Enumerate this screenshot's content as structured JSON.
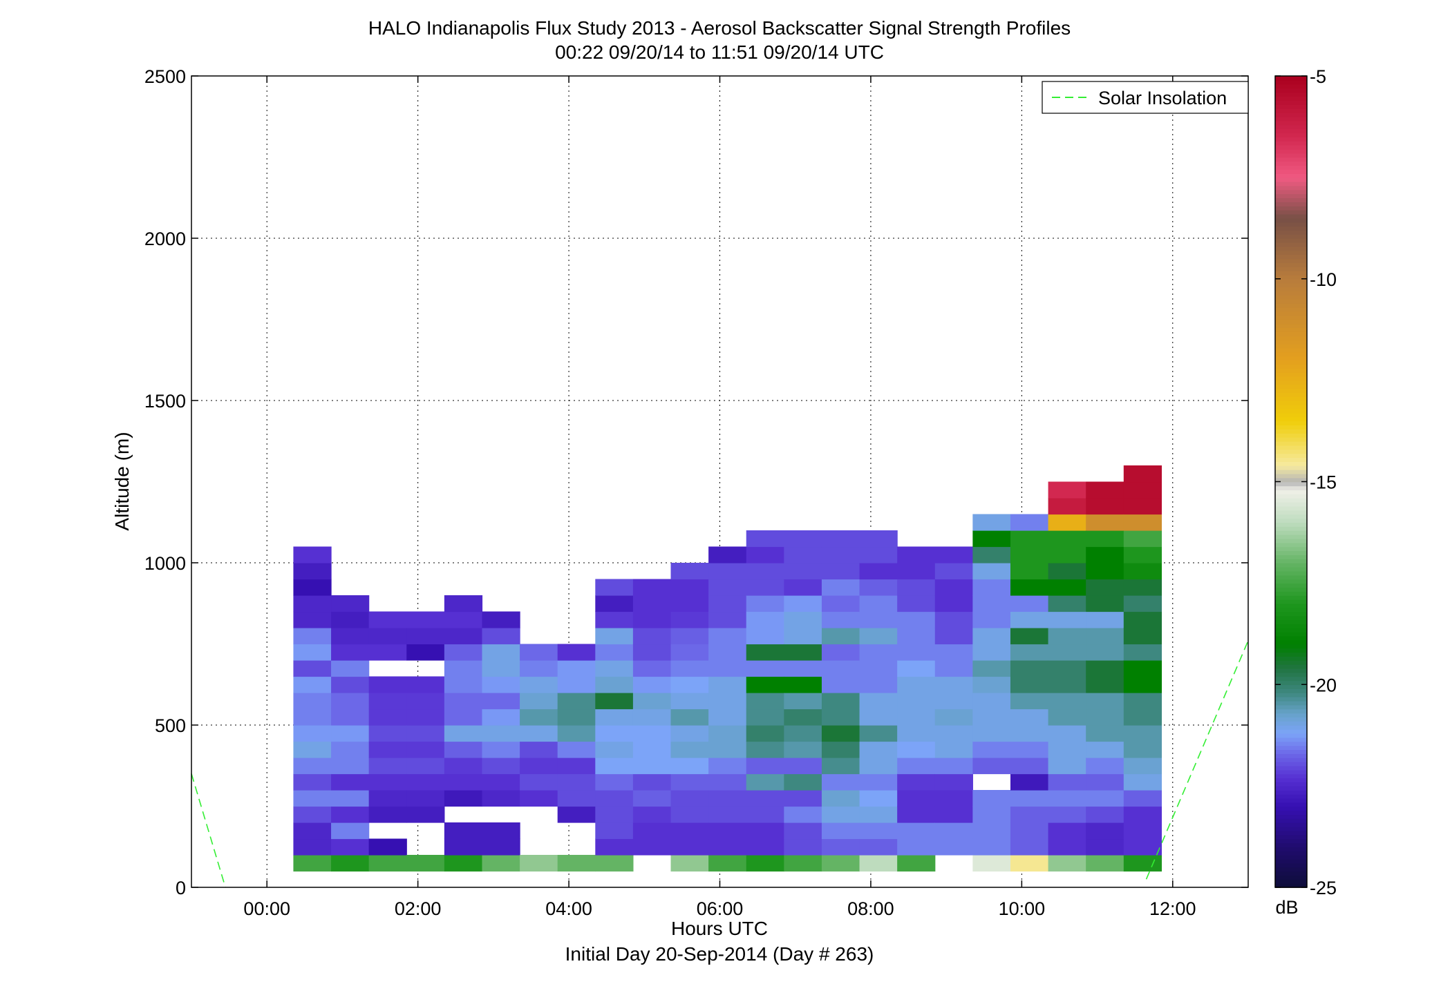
{
  "chart_data": {
    "type": "heatmap",
    "title": "HALO Indianapolis Flux Study 2013 - Aerosol Backscatter Signal Strength Profiles",
    "subtitle": "00:22 09/20/14 to 11:51 09/20/14  UTC",
    "xlabel": "Hours UTC",
    "xlabel2": "Initial Day 20-Sep-2014 (Day # 263)",
    "ylabel": "Altitude (m)",
    "xlim": [
      -1.0,
      13.0
    ],
    "ylim": [
      0,
      2500
    ],
    "x_ticks": [
      0,
      2,
      4,
      6,
      8,
      10,
      12
    ],
    "x_tick_labels": [
      "00:00",
      "02:00",
      "04:00",
      "06:00",
      "08:00",
      "10:00",
      "12:00"
    ],
    "y_ticks": [
      0,
      500,
      1000,
      1500,
      2000,
      2500
    ],
    "y_tick_labels": [
      "0",
      "500",
      "1000",
      "1500",
      "2000",
      "2500"
    ],
    "grid": true,
    "legend": {
      "position": "top-right",
      "entries": [
        "Solar Insolation"
      ]
    },
    "colorbar": {
      "min": -25,
      "max": -5,
      "unit": "dB",
      "ticks": [
        -5,
        -10,
        -15,
        -20,
        -25
      ],
      "tick_labels": [
        "-5",
        "-10",
        "-15",
        "-20",
        "-25"
      ]
    },
    "bin_width_hours": 0.5,
    "bin_height_m": 50,
    "columns": [
      {
        "x_start": 0.35,
        "y_start": 50,
        "values": [
          -17.5,
          -22.5,
          -22.5,
          -22.0,
          -21.5,
          -22.0,
          -21.5,
          -21.0,
          -21.3,
          -21.5,
          -21.5,
          -21.3,
          -22.0,
          -21.3,
          -21.5,
          -22.5,
          -22.5,
          -23.0,
          -22.7,
          -22.3
        ]
      },
      {
        "x_start": 0.85,
        "y_start": 50,
        "values": [
          -18.0,
          -22.3,
          -21.5,
          -22.3,
          -21.5,
          -22.3,
          -21.5,
          -21.5,
          -21.3,
          -21.7,
          -21.7,
          -22.0,
          -21.5,
          -22.3,
          -22.5,
          -22.7,
          -22.5
        ]
      },
      {
        "x_start": 1.35,
        "y_start": 50,
        "values": [
          -17.5,
          -23.0,
          null,
          -22.7,
          -22.5,
          -22.3,
          -22.0,
          -22.2,
          -22.0,
          -22.2,
          -22.2,
          -22.3,
          null,
          -22.3,
          -22.5,
          -22.3
        ]
      },
      {
        "x_start": 1.85,
        "y_start": 50,
        "values": [
          -17.5,
          null,
          null,
          -22.7,
          -22.5,
          -22.3,
          -22.0,
          -22.2,
          -22.0,
          -22.2,
          -22.2,
          -22.3,
          null,
          -23.0,
          -22.5,
          -22.3
        ]
      },
      {
        "x_start": 2.35,
        "y_start": 50,
        "values": [
          -18.0,
          -22.7,
          -22.7,
          null,
          -22.8,
          -22.3,
          -22.2,
          -21.8,
          -21.0,
          -21.7,
          -21.7,
          -21.5,
          -21.5,
          -21.8,
          -22.5,
          -22.3,
          -22.5
        ]
      },
      {
        "x_start": 2.85,
        "y_start": 50,
        "values": [
          -17.0,
          -22.7,
          -22.7,
          null,
          -22.5,
          -22.3,
          -22.0,
          -21.5,
          -21.0,
          -21.3,
          -21.7,
          -21.3,
          -21.0,
          -21.0,
          -22.0,
          -22.7
        ]
      },
      {
        "x_start": 3.35,
        "y_start": 50,
        "values": [
          -16.5,
          null,
          null,
          null,
          -22.3,
          -22.0,
          -22.2,
          -22.0,
          -21.0,
          -20.5,
          -20.8,
          -21.0,
          -21.5,
          -21.7,
          null
        ]
      },
      {
        "x_start": 3.85,
        "y_start": 50,
        "values": [
          -17.0,
          null,
          null,
          -22.7,
          -22.0,
          -22.0,
          -22.2,
          -21.5,
          -20.5,
          -20.3,
          -20.3,
          -21.3,
          -21.3,
          -22.3,
          null
        ]
      },
      {
        "x_start": 4.35,
        "y_start": 50,
        "values": [
          -17.0,
          -22.3,
          -22.0,
          -22.0,
          -22.0,
          -21.7,
          -21.2,
          -21.0,
          -21.2,
          -21.0,
          -19.5,
          -20.8,
          -21.0,
          -21.5,
          -21.0,
          -22.2,
          -22.7,
          -22.0
        ]
      },
      {
        "x_start": 4.85,
        "y_start": 50,
        "values": [
          null,
          -22.3,
          -22.3,
          -22.2,
          -21.8,
          -22.0,
          -21.2,
          -21.2,
          -21.2,
          -21.0,
          -20.8,
          -21.3,
          -21.7,
          -22.0,
          -22.0,
          -22.3,
          -22.3,
          -22.3
        ]
      },
      {
        "x_start": 5.35,
        "y_start": 50,
        "values": [
          -16.5,
          -22.3,
          -22.3,
          -22.0,
          -22.0,
          -21.8,
          -21.2,
          -20.8,
          -21.0,
          -20.5,
          -21.0,
          -21.2,
          -21.5,
          -21.7,
          -21.8,
          -22.2,
          -22.3,
          -22.3,
          -22.0
        ]
      },
      {
        "x_start": 5.85,
        "y_start": 50,
        "values": [
          -17.5,
          -22.3,
          -22.3,
          -22.0,
          -22.0,
          -21.8,
          -21.5,
          -20.8,
          -20.8,
          -21.0,
          -21.0,
          -21.0,
          -21.5,
          -21.5,
          -21.5,
          -22.0,
          -22.0,
          -22.0,
          -22.0,
          -22.7
        ]
      },
      {
        "x_start": 6.35,
        "y_start": 50,
        "values": [
          -18.0,
          -22.3,
          -22.3,
          -22.0,
          -22.0,
          -20.5,
          -21.8,
          -20.3,
          -20.0,
          -20.3,
          -20.3,
          -19.0,
          -21.5,
          -19.5,
          -21.3,
          -21.3,
          -21.5,
          -22.0,
          -22.0,
          -22.3,
          -22.0
        ]
      },
      {
        "x_start": 6.85,
        "y_start": 50,
        "values": [
          -17.5,
          -22.0,
          -22.0,
          -21.5,
          -22.0,
          -20.2,
          -21.8,
          -20.5,
          -20.3,
          -20.0,
          -20.5,
          -19.0,
          -21.5,
          -19.5,
          -21.0,
          -21.0,
          -21.3,
          -22.2,
          -22.0,
          -22.0,
          -22.0
        ]
      },
      {
        "x_start": 7.35,
        "y_start": 50,
        "values": [
          -17.0,
          -21.8,
          -21.5,
          -21.0,
          -20.8,
          -21.5,
          -20.3,
          -20.0,
          -19.5,
          -20.2,
          -20.2,
          -21.5,
          -21.5,
          -21.7,
          -20.5,
          -21.5,
          -21.7,
          -21.5,
          -22.0,
          -22.0,
          -22.0
        ]
      },
      {
        "x_start": 7.85,
        "y_start": 50,
        "values": [
          -16.0,
          -21.8,
          -21.5,
          -21.0,
          -21.2,
          -21.5,
          -21.0,
          -21.0,
          -20.3,
          -21.0,
          -21.0,
          -21.5,
          -21.5,
          -21.5,
          -20.8,
          -21.5,
          -21.5,
          -21.8,
          -22.3,
          -22.0,
          -22.0
        ]
      },
      {
        "x_start": 8.35,
        "y_start": 50,
        "values": [
          -17.5,
          -21.5,
          -21.5,
          -22.3,
          -22.3,
          -22.2,
          -21.5,
          -21.2,
          -21.0,
          -21.0,
          -21.0,
          -21.0,
          -21.2,
          -21.5,
          -21.5,
          -21.5,
          -22.0,
          -22.0,
          -22.3,
          -22.3
        ]
      },
      {
        "x_start": 8.85,
        "y_start": 50,
        "values": [
          null,
          -21.5,
          -21.5,
          -22.3,
          -22.3,
          -22.2,
          -21.5,
          -21.0,
          -21.0,
          -20.8,
          -21.0,
          -21.0,
          -21.5,
          -21.5,
          -22.0,
          -22.0,
          -22.3,
          -22.3,
          -22.0,
          -22.3
        ]
      },
      {
        "x_start": 9.35,
        "y_start": 50,
        "values": [
          -15.5,
          -21.5,
          -21.5,
          -21.5,
          -21.5,
          null,
          -21.8,
          -21.5,
          -21.0,
          -21.0,
          -21.0,
          -20.8,
          -20.5,
          -21.0,
          -21.0,
          -21.5,
          -21.5,
          -21.5,
          -21.0,
          -20.0,
          -19.0,
          -21.0
        ]
      },
      {
        "x_start": 9.85,
        "y_start": 50,
        "values": [
          -14.5,
          -21.8,
          -21.8,
          -21.8,
          -21.5,
          -22.8,
          -21.8,
          -21.5,
          -21.0,
          -21.0,
          -20.5,
          -20.0,
          -20.0,
          -20.5,
          -19.5,
          -21.0,
          -21.5,
          -19.0,
          -18.0,
          -18.0,
          -18.0,
          -21.5
        ]
      },
      {
        "x_start": 10.35,
        "y_start": 50,
        "values": [
          -16.5,
          -22.3,
          -22.3,
          -21.8,
          -21.5,
          -21.8,
          -21.0,
          -21.0,
          -21.0,
          -20.5,
          -20.5,
          -20.0,
          -20.0,
          -20.5,
          -20.5,
          -21.0,
          -20.0,
          -19.0,
          -19.5,
          -18.0,
          -18.0,
          -12.5,
          -6.0,
          -6.5
        ]
      },
      {
        "x_start": 10.85,
        "y_start": 50,
        "values": [
          -17.0,
          -22.5,
          -22.5,
          -22.0,
          -21.5,
          -21.8,
          -21.5,
          -21.0,
          -20.5,
          -20.5,
          -20.5,
          -19.5,
          -19.5,
          -20.5,
          -20.5,
          -21.0,
          -19.5,
          -19.5,
          -19.0,
          -19.0,
          -18.0,
          -11.0,
          -5.5,
          -5.5
        ]
      },
      {
        "x_start": 11.35,
        "y_start": 50,
        "values": [
          -18.0,
          -22.3,
          -22.3,
          -22.3,
          -21.8,
          -21.0,
          -20.8,
          -20.5,
          -20.5,
          -20.2,
          -20.2,
          -19.0,
          -19.0,
          -20.2,
          -19.5,
          -19.5,
          -20.0,
          -19.5,
          -18.5,
          -18.0,
          -17.5,
          -11.0,
          -5.5,
          -5.5,
          -5.5
        ]
      }
    ],
    "solar_insolation_segments": [
      {
        "x": [
          -1.0,
          -0.55
        ],
        "y": [
          350,
          0
        ]
      },
      {
        "x": [
          11.65,
          13.0
        ],
        "y": [
          25,
          760
        ]
      }
    ]
  }
}
